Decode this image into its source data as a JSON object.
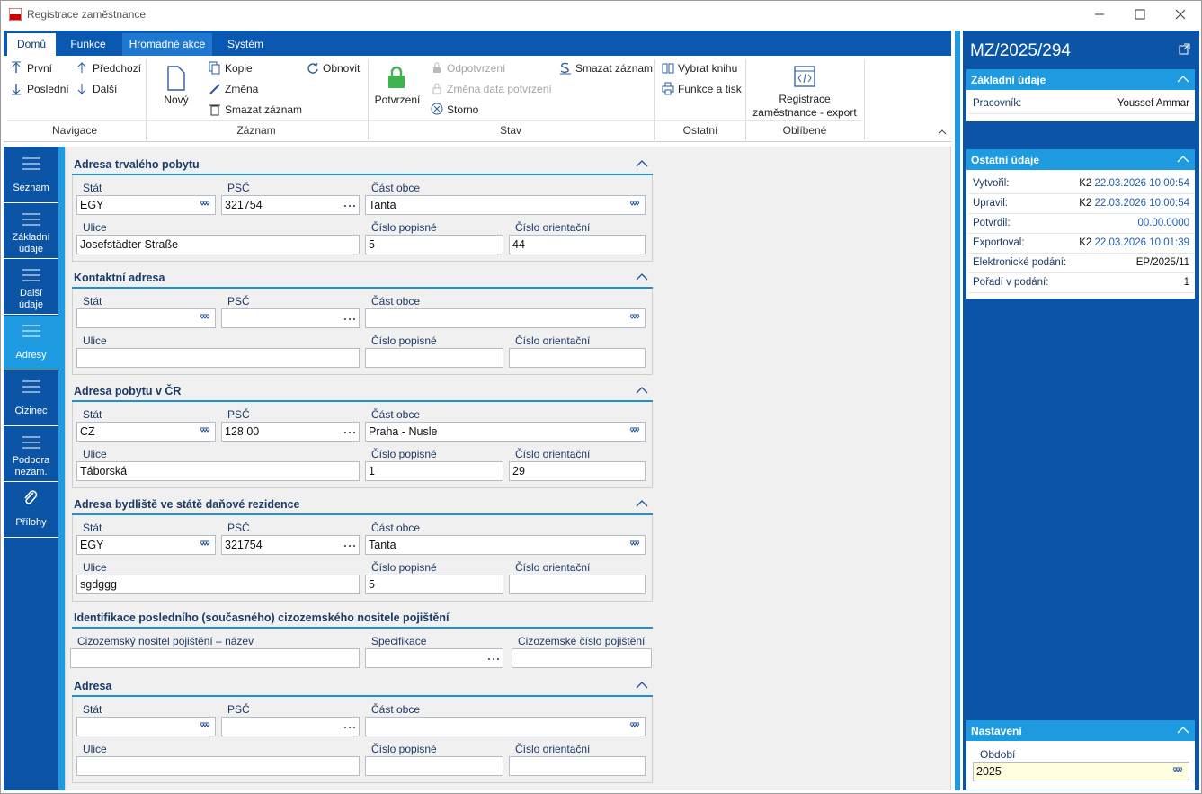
{
  "window": {
    "title": "Registrace zaměstnance"
  },
  "ribbon": {
    "tabs": [
      "Domů",
      "Funkce",
      "Hromadné akce",
      "Systém"
    ],
    "active_tab": 0,
    "groups": [
      {
        "label": "Navigace",
        "items": [
          "První",
          "Předchozí",
          "Poslední",
          "Další"
        ]
      },
      {
        "label": "Záznam",
        "items": [
          "Nový",
          "Kopie",
          "Změna",
          "Smazat záznam",
          "Obnovit"
        ]
      },
      {
        "label": "Stav",
        "items": [
          "Potvrzení",
          "Odpotvrzení",
          "Změna data potvrzení",
          "Storno",
          "Smazat záznam"
        ]
      },
      {
        "label": "Ostatní",
        "items": [
          "Vybrat knihu",
          "Funkce a tisk"
        ]
      },
      {
        "label": "Oblíbené",
        "items": [
          "Registrace zaměstnance - export"
        ]
      }
    ]
  },
  "sidebar": {
    "items": [
      "Seznam",
      "Základní údaje",
      "Další údaje",
      "Adresy",
      "Cizinec",
      "Podpora nezam.",
      "Přílohy"
    ],
    "active": 3
  },
  "form": {
    "sections": [
      {
        "title": "Adresa trvalého pobytu",
        "labels": [
          "Stát",
          "PSČ",
          "Část obce",
          "Ulice",
          "Číslo popisné",
          "Číslo orientační"
        ],
        "values": [
          "EGY",
          "321754",
          "Tanta",
          "Josefstädter Straße",
          "5",
          "44"
        ]
      },
      {
        "title": "Kontaktní adresa",
        "labels": [
          "Stát",
          "PSČ",
          "Část obce",
          "Ulice",
          "Číslo popisné",
          "Číslo orientační"
        ],
        "values": [
          null,
          null,
          null,
          null,
          null,
          null
        ]
      },
      {
        "title": "Adresa pobytu v ČR",
        "labels": [
          "Stát",
          "PSČ",
          "Část obce",
          "Ulice",
          "Číslo popisné",
          "Číslo orientační"
        ],
        "values": [
          "CZ",
          "128 00",
          "Praha  - Nusle",
          "Táborská",
          "1",
          "29"
        ]
      },
      {
        "title": "Adresa bydliště ve státě daňové rezidence",
        "labels": [
          "Stát",
          "PSČ",
          "Část obce",
          "Ulice",
          "Číslo popisné",
          "Číslo orientační"
        ],
        "values": [
          "EGY",
          "321754",
          "Tanta",
          "sgdggg",
          "5",
          null
        ]
      },
      {
        "title": "Identifikace posledního (současného) cizozemského nositele pojištění",
        "labels": [
          "Cizozemský nositel pojištění – název",
          "Specifikace",
          "Cizozemské číslo pojištění"
        ],
        "values": [
          null,
          null,
          null
        ]
      },
      {
        "title": "Adresa",
        "labels": [
          "Stát",
          "PSČ",
          "Část obce",
          "Ulice",
          "Číslo popisné",
          "Číslo orientační"
        ],
        "values": [
          null,
          null,
          null,
          null,
          null,
          null
        ]
      }
    ]
  },
  "panel": {
    "record": "MZ/2025/294",
    "sections": [
      {
        "title": "Základní údaje",
        "rows": [
          {
            "label": "Pracovník:",
            "value": "Youssef Ammar"
          }
        ]
      },
      {
        "title": "Ostatní údaje",
        "rows": [
          {
            "label": "Vytvořil:",
            "user": "K2",
            "date": "22.03.2026 10:00:54"
          },
          {
            "label": "Upravil:",
            "user": "K2",
            "date": "22.03.2026 10:00:54"
          },
          {
            "label": "Potvrdil:",
            "date": "00.00.0000"
          },
          {
            "label": "Exportoval:",
            "user": "K2",
            "date": "22.03.2026 10:01:39"
          },
          {
            "label": "Elektronické podání:",
            "value": "EP/2025/11"
          },
          {
            "label": "Pořadí v podání:",
            "value": "1"
          }
        ]
      },
      {
        "title": "Nastavení",
        "fields": [
          {
            "label": "Období",
            "value": "2025"
          }
        ]
      }
    ]
  }
}
